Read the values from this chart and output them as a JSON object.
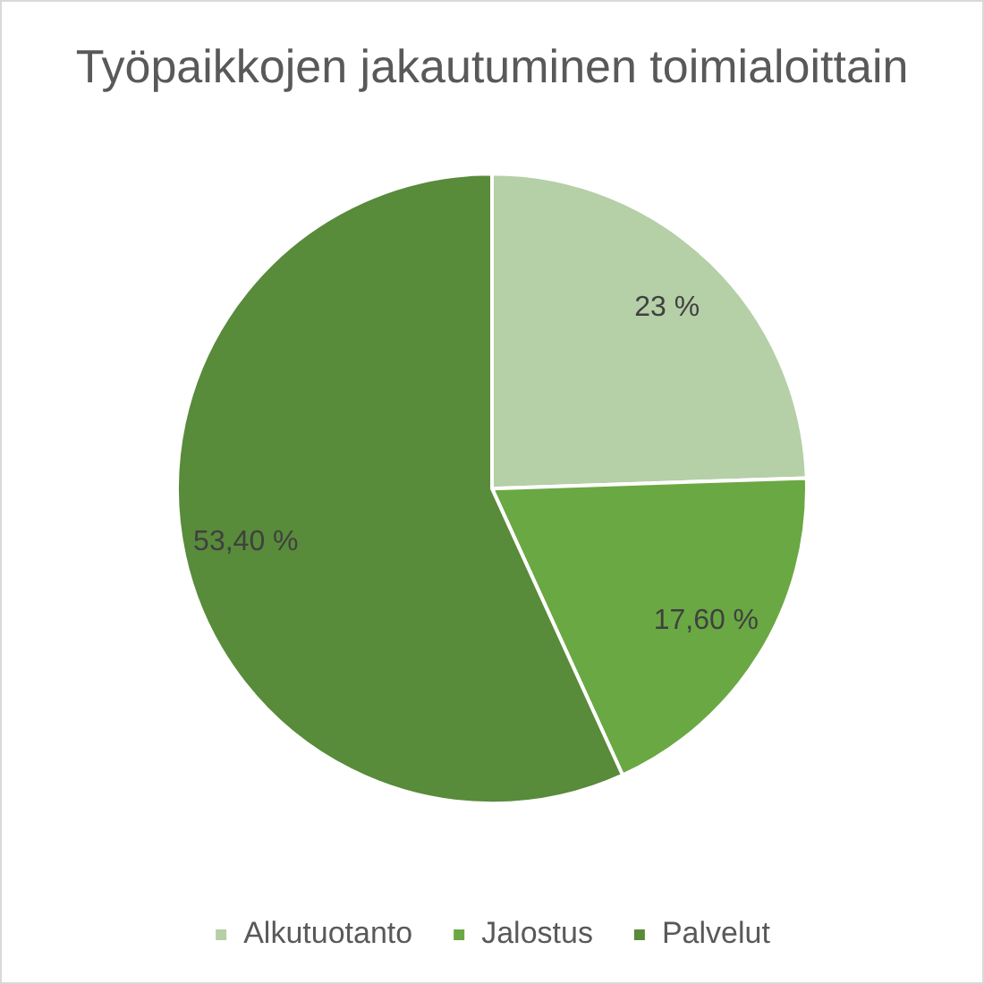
{
  "chart_data": {
    "type": "pie",
    "title": "Työpaikkojen jakautuminen toimialoittain",
    "categories": [
      "Alkutuotanto",
      "Jalostus",
      "Palvelut"
    ],
    "values": [
      23,
      17.6,
      53.4
    ],
    "colors": [
      "#b5cfa7",
      "#6aa843",
      "#588b3a"
    ],
    "value_labels": [
      "23 %",
      "17,60 %",
      "53,40 %"
    ],
    "legend": "bottom"
  }
}
